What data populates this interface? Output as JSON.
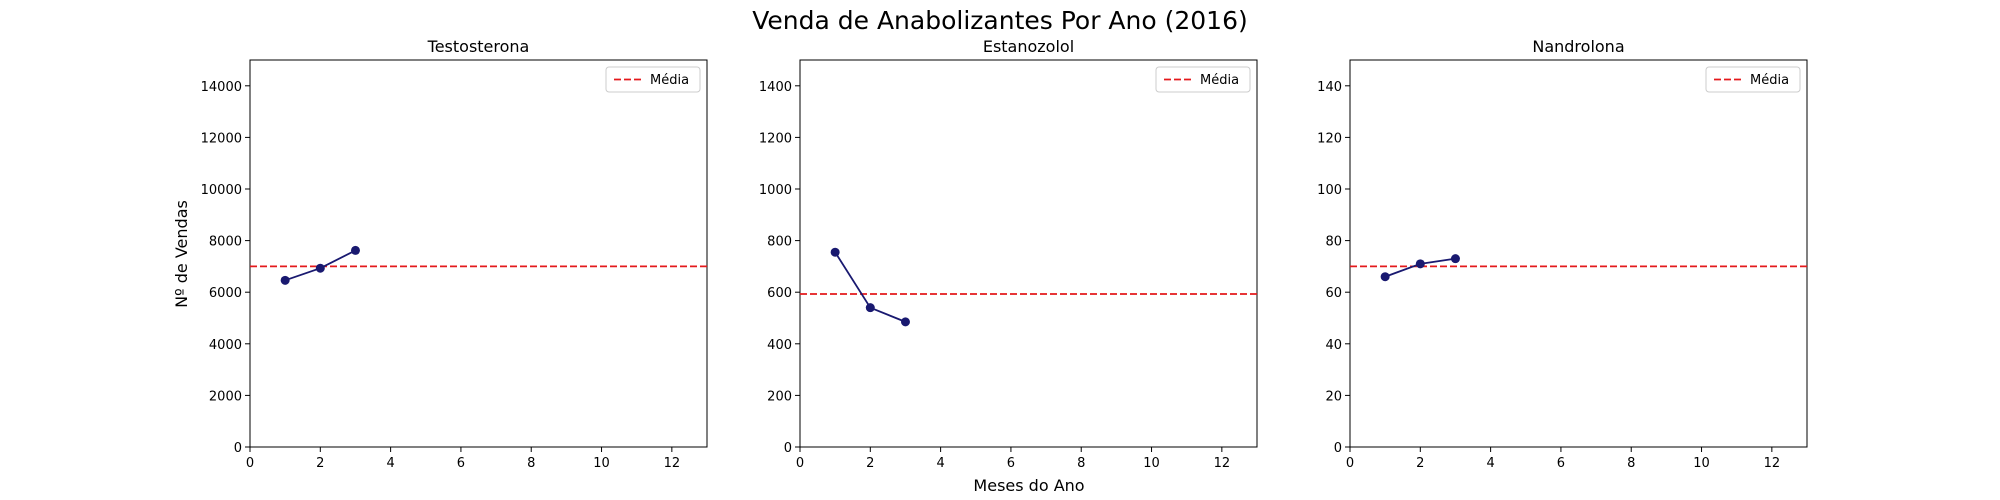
{
  "figure": {
    "suptitle": "Venda de Anabolizantes Por Ano (2016)",
    "xlabel": "Meses do Ano",
    "ylabel": "Nº de Vendas"
  },
  "colors": {
    "line": "#191970",
    "mean": "#e41a1c",
    "axes": "#000000"
  },
  "chart_data": [
    {
      "type": "line",
      "title": "Testosterona",
      "x": [
        1,
        2,
        3
      ],
      "series": [
        {
          "values": [
            6460,
            6930,
            7620
          ]
        }
      ],
      "mean_line": {
        "label": "Média",
        "value": 7000
      },
      "xlim": [
        0,
        13
      ],
      "ylim": [
        0,
        15000
      ],
      "xticks": [
        0,
        2,
        4,
        6,
        8,
        10,
        12
      ],
      "yticks": [
        0,
        2000,
        4000,
        6000,
        8000,
        10000,
        12000,
        14000
      ],
      "legend": "top-right",
      "grid": false
    },
    {
      "type": "line",
      "title": "Estanozolol",
      "x": [
        1,
        2,
        3
      ],
      "series": [
        {
          "values": [
            755,
            540,
            485
          ]
        }
      ],
      "mean_line": {
        "label": "Média",
        "value": 593
      },
      "xlim": [
        0,
        13
      ],
      "ylim": [
        0,
        1500
      ],
      "xticks": [
        0,
        2,
        4,
        6,
        8,
        10,
        12
      ],
      "yticks": [
        0,
        200,
        400,
        600,
        800,
        1000,
        1200,
        1400
      ],
      "legend": "top-right",
      "grid": false
    },
    {
      "type": "line",
      "title": "Nandrolona",
      "x": [
        1,
        2,
        3
      ],
      "series": [
        {
          "values": [
            66,
            71,
            73
          ]
        }
      ],
      "mean_line": {
        "label": "Média",
        "value": 70
      },
      "xlim": [
        0,
        13
      ],
      "ylim": [
        0,
        150
      ],
      "xticks": [
        0,
        2,
        4,
        6,
        8,
        10,
        12
      ],
      "yticks": [
        0,
        20,
        40,
        60,
        80,
        100,
        120,
        140
      ],
      "legend": "top-right",
      "grid": false
    }
  ]
}
